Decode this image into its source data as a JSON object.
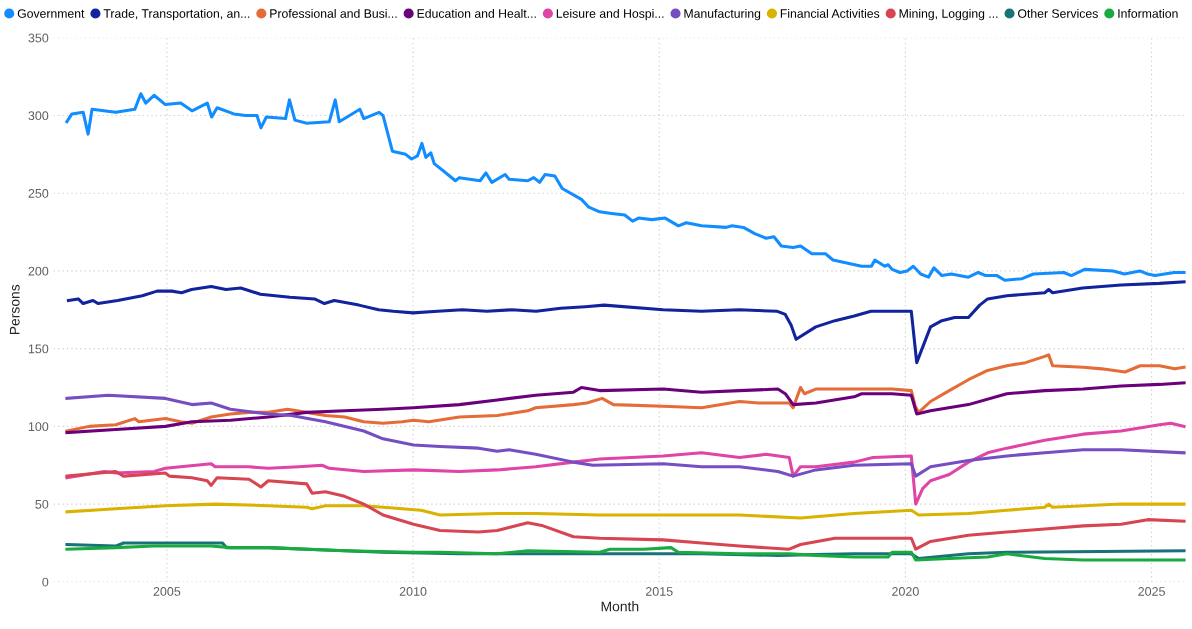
{
  "chart_data": {
    "type": "line",
    "xlabel": "Month",
    "ylabel": "Persons",
    "xlim": [
      2002.7,
      2025.7
    ],
    "xticks": [
      2005,
      2010,
      2015,
      2020,
      2025
    ],
    "ylim": [
      0,
      350
    ],
    "yticks": [
      0,
      50,
      100,
      150,
      200,
      250,
      300,
      350
    ],
    "grid": true,
    "legend": "top left",
    "marker": "none",
    "line_style": "solid",
    "series": [
      {
        "name": "Government",
        "color": "#118dff",
        "x": [
          2002.97,
          2003.07,
          2003.3,
          2003.4,
          2003.48,
          2003.96,
          2004.35,
          2004.47,
          2004.57,
          2004.74,
          2004.97,
          2005.28,
          2005.51,
          2005.82,
          2005.91,
          2006.02,
          2006.36,
          2006.6,
          2006.83,
          2006.91,
          2007.02,
          2007.41,
          2007.49,
          2007.6,
          2007.84,
          2008.3,
          2008.42,
          2008.5,
          2008.92,
          2009.0,
          2009.31,
          2009.39,
          2009.58,
          2009.85,
          2009.97,
          2010.09,
          2010.18,
          2010.26,
          2010.36,
          2010.43,
          2010.63,
          2010.86,
          2010.94,
          2011.36,
          2011.48,
          2011.6,
          2011.87,
          2011.95,
          2012.33,
          2012.45,
          2012.57,
          2012.68,
          2012.88,
          2013.03,
          2013.42,
          2013.57,
          2013.79,
          2014.03,
          2014.3,
          2014.46,
          2014.58,
          2014.85,
          2015.12,
          2015.39,
          2015.55,
          2015.86,
          2016.36,
          2016.48,
          2016.71,
          2016.94,
          2017.17,
          2017.33,
          2017.48,
          2017.72,
          2017.87,
          2018.1,
          2018.38,
          2018.53,
          2019.11,
          2019.31,
          2019.38,
          2019.58,
          2019.65,
          2019.73,
          2019.89,
          2020.04,
          2020.16,
          2020.31,
          2020.47,
          2020.58,
          2020.74,
          2020.93,
          2021.28,
          2021.48,
          2021.63,
          2021.86,
          2022.02,
          2022.37,
          2022.6,
          2023.22,
          2023.37,
          2023.64,
          2024.22,
          2024.45,
          2024.76,
          2024.92,
          2025.07,
          2025.46,
          2025.66
        ],
        "values": [
          296,
          301,
          302,
          288,
          304,
          302,
          304,
          314,
          308,
          313,
          307,
          308,
          303,
          308,
          299,
          305,
          301,
          300,
          300,
          292,
          299,
          298,
          310,
          297,
          295,
          296,
          310,
          296,
          304,
          298,
          302,
          300,
          277,
          275,
          272,
          274,
          282,
          273,
          276,
          269,
          264,
          258,
          260,
          258,
          263,
          257,
          262,
          259,
          258,
          260,
          257,
          262,
          261,
          253,
          246,
          241,
          238,
          237,
          236,
          232,
          234,
          233,
          234,
          229,
          231,
          229,
          228,
          229,
          228,
          224,
          221,
          222,
          216,
          215,
          216,
          211,
          211,
          207,
          203,
          203,
          207,
          203,
          204,
          201,
          199,
          200,
          203,
          198,
          196,
          202,
          197,
          198,
          196,
          199,
          197,
          197,
          194,
          195,
          198,
          199,
          197,
          201,
          200,
          198,
          200,
          198,
          197,
          199,
          199
        ]
      },
      {
        "name": "Trade, Transportation, an...",
        "color": "#12239e",
        "x": [
          2003.0,
          2003.2,
          2003.3,
          2003.5,
          2003.6,
          2004.0,
          2004.5,
          2004.8,
          2005.1,
          2005.3,
          2005.5,
          2005.9,
          2006.2,
          2006.5,
          2006.9,
          2007.2,
          2007.5,
          2008.0,
          2008.2,
          2008.4,
          2008.9,
          2009.3,
          2009.6,
          2010.0,
          2010.5,
          2011.0,
          2011.5,
          2012.0,
          2012.5,
          2013.0,
          2013.5,
          2013.88,
          2015.08,
          2015.86,
          2016.63,
          2017.4,
          2017.56,
          2017.68,
          2017.78,
          2018.18,
          2018.57,
          2018.96,
          2019.3,
          2019.65,
          2020.12,
          2020.23,
          2020.51,
          2020.74,
          2021.0,
          2021.28,
          2021.51,
          2021.67,
          2022.06,
          2022.83,
          2022.91,
          2022.99,
          2023.6,
          2024.38,
          2025.16,
          2025.66
        ],
        "values": [
          181,
          182,
          179,
          181,
          179,
          181,
          184,
          187,
          187,
          186,
          188,
          190,
          188,
          189,
          185,
          184,
          183,
          182,
          179,
          181,
          178,
          175,
          174,
          173,
          174,
          175,
          174,
          175,
          174,
          176,
          177,
          178,
          175,
          174,
          175,
          174,
          172,
          165,
          156,
          164,
          168,
          171,
          174,
          174,
          174,
          141,
          164,
          168,
          170,
          170,
          178,
          182,
          184,
          186,
          188,
          186,
          189,
          191,
          192,
          193
        ]
      },
      {
        "name": "Professional and Busi...",
        "color": "#e66c37",
        "x": [
          2002.97,
          2003.42,
          2003.96,
          2004.35,
          2004.43,
          2004.97,
          2005.28,
          2005.51,
          2005.9,
          2006.29,
          2006.67,
          2007.06,
          2007.45,
          2007.84,
          2008.22,
          2008.61,
          2009.0,
          2009.39,
          2009.78,
          2010.01,
          2010.32,
          2010.94,
          2011.71,
          2012.33,
          2012.49,
          2013.26,
          2013.53,
          2013.84,
          2014.07,
          2015.08,
          2015.86,
          2016.63,
          2017.02,
          2017.64,
          2017.72,
          2017.87,
          2017.95,
          2018.18,
          2018.96,
          2019.73,
          2020.12,
          2020.2,
          2020.27,
          2020.51,
          2020.89,
          2021.28,
          2021.67,
          2022.06,
          2022.44,
          2022.83,
          2022.91,
          2022.99,
          2023.61,
          2023.99,
          2024.46,
          2024.77,
          2025.16,
          2025.47,
          2025.66
        ],
        "values": [
          97,
          100,
          101,
          105,
          103,
          105,
          103,
          102,
          106,
          108,
          109,
          109,
          111,
          109,
          107,
          106,
          103,
          102,
          103,
          104,
          103,
          106,
          107,
          110,
          112,
          114,
          115,
          118,
          114,
          113,
          112,
          116,
          115,
          115,
          112,
          125,
          121,
          124,
          124,
          124,
          123,
          113,
          109,
          116,
          123,
          130,
          136,
          139,
          141,
          145,
          146,
          139,
          138,
          137,
          135,
          139,
          139,
          137,
          138
        ]
      },
      {
        "name": "Education and Healt...",
        "color": "#6b007b",
        "x": [
          2002.97,
          2003.96,
          2004.97,
          2005.51,
          2006.29,
          2007.06,
          2007.84,
          2008.61,
          2009.39,
          2010.01,
          2010.94,
          2011.71,
          2012.49,
          2013.26,
          2013.42,
          2013.79,
          2015.08,
          2015.86,
          2016.63,
          2017.41,
          2017.56,
          2017.72,
          2018.18,
          2018.96,
          2019.11,
          2019.73,
          2020.12,
          2020.23,
          2020.51,
          2021.28,
          2022.06,
          2022.83,
          2023.61,
          2024.38,
          2025.16,
          2025.66
        ],
        "values": [
          96,
          98,
          100,
          103,
          104,
          106,
          109,
          110,
          111,
          112,
          114,
          117,
          120,
          122,
          125,
          123,
          124,
          122,
          123,
          124,
          121,
          114,
          115,
          119,
          121,
          121,
          120,
          108,
          110,
          114,
          121,
          123,
          124,
          126,
          127,
          128
        ]
      },
      {
        "name": "Leisure and Hospi...",
        "color": "#e044a7",
        "x": [
          2002.97,
          2003.73,
          2003.96,
          2004.74,
          2004.97,
          2005.9,
          2005.98,
          2006.67,
          2007.06,
          2007.68,
          2008.15,
          2008.3,
          2009.0,
          2010.01,
          2010.94,
          2011.71,
          2012.49,
          2013.26,
          2013.79,
          2015.08,
          2015.86,
          2016.63,
          2017.17,
          2017.64,
          2017.72,
          2017.87,
          2018.18,
          2018.96,
          2019.34,
          2020.12,
          2020.21,
          2020.35,
          2020.51,
          2020.89,
          2021.28,
          2021.67,
          2022.06,
          2022.83,
          2023.61,
          2024.38,
          2025.16,
          2025.39,
          2025.66
        ],
        "values": [
          67,
          71,
          70,
          71,
          73,
          76,
          74,
          74,
          73,
          74,
          75,
          73,
          71,
          72,
          71,
          72,
          74,
          77,
          79,
          81,
          83,
          80,
          82,
          80,
          68,
          74,
          74,
          77,
          80,
          81,
          50,
          60,
          65,
          69,
          77,
          83,
          86,
          91,
          95,
          97,
          101,
          102,
          100
        ]
      },
      {
        "name": "Manufacturing",
        "color": "#744ec2",
        "x": [
          2002.97,
          2003.81,
          2004.97,
          2005.51,
          2005.9,
          2006.29,
          2007.06,
          2007.53,
          2008.22,
          2009.0,
          2009.39,
          2010.01,
          2010.55,
          2011.33,
          2011.71,
          2011.95,
          2012.49,
          2013.26,
          2013.65,
          2015.08,
          2015.86,
          2016.63,
          2017.41,
          2017.72,
          2018.18,
          2018.96,
          2020.12,
          2020.21,
          2020.51,
          2021.28,
          2022.06,
          2022.83,
          2023.61,
          2024.38,
          2025.66
        ],
        "values": [
          118,
          120,
          118,
          114,
          115,
          111,
          108,
          107,
          103,
          97,
          92,
          88,
          87,
          86,
          84,
          85,
          82,
          77,
          75,
          76,
          74,
          74,
          71,
          68,
          72,
          75,
          76,
          68,
          74,
          78,
          81,
          83,
          85,
          85,
          83
        ]
      },
      {
        "name": "Financial Activities",
        "color": "#d9b300",
        "x": [
          2002.97,
          2003.96,
          2004.97,
          2005.98,
          2007.06,
          2007.84,
          2007.95,
          2008.22,
          2009.0,
          2009.78,
          2010.16,
          2010.55,
          2011.71,
          2012.49,
          2013.79,
          2015.08,
          2016.63,
          2017.87,
          2018.96,
          2020.12,
          2020.27,
          2021.28,
          2022.06,
          2022.83,
          2022.91,
          2022.99,
          2024.38,
          2025.66
        ],
        "values": [
          45,
          47,
          49,
          50,
          49,
          48,
          47,
          49,
          49,
          47,
          46,
          43,
          44,
          44,
          43,
          43,
          43,
          41,
          44,
          46,
          43,
          44,
          46,
          48,
          50,
          48,
          50,
          50
        ]
      },
      {
        "name": "Mining, Logging ...",
        "color": "#d64550",
        "x": [
          2002.97,
          2003.96,
          2004.12,
          2004.97,
          2005.05,
          2005.51,
          2005.82,
          2005.9,
          2006.02,
          2006.67,
          2006.91,
          2007.06,
          2007.84,
          2007.95,
          2008.22,
          2008.61,
          2009.0,
          2009.39,
          2010.01,
          2010.55,
          2011.33,
          2011.71,
          2011.95,
          2012.33,
          2012.64,
          2013.26,
          2013.79,
          2015.08,
          2015.86,
          2016.63,
          2017.64,
          2017.87,
          2018.57,
          2020.12,
          2020.21,
          2020.51,
          2021.28,
          2022.06,
          2022.83,
          2023.61,
          2024.38,
          2024.92,
          2025.66
        ],
        "values": [
          68,
          71,
          68,
          70,
          68,
          67,
          65,
          62,
          67,
          66,
          61,
          65,
          63,
          57,
          58,
          55,
          50,
          43,
          37,
          33,
          32,
          33,
          35,
          38,
          36,
          29,
          28,
          27,
          25,
          23,
          21,
          24,
          28,
          28,
          21,
          26,
          30,
          32,
          34,
          36,
          37,
          40,
          39
        ]
      },
      {
        "name": "Other Services",
        "color": "#197278",
        "x": [
          2002.97,
          2003.96,
          2004.12,
          2004.97,
          2006.13,
          2006.21,
          2007.06,
          2007.84,
          2009.39,
          2010.94,
          2013.79,
          2015.86,
          2017.41,
          2018.96,
          2020.12,
          2020.27,
          2021.28,
          2022.06,
          2025.66
        ],
        "values": [
          24,
          23,
          25,
          25,
          25,
          22,
          22,
          21,
          19,
          18,
          18,
          18,
          17,
          18,
          18,
          15,
          18,
          19,
          20
        ]
      },
      {
        "name": "Information",
        "color": "#1aab40",
        "x": [
          2002.97,
          2003.96,
          2004.74,
          2005.9,
          2006.29,
          2007.06,
          2008.61,
          2010.01,
          2010.55,
          2011.71,
          2012.33,
          2013.79,
          2014.0,
          2014.69,
          2015.24,
          2015.39,
          2016.63,
          2017.64,
          2018.18,
          2018.96,
          2019.65,
          2019.73,
          2020.12,
          2020.21,
          2020.89,
          2021.67,
          2022.06,
          2022.83,
          2023.61,
          2025.66
        ],
        "values": [
          21,
          22,
          23,
          23,
          22,
          22,
          20,
          19,
          19,
          18,
          20,
          19,
          21,
          21,
          22,
          19,
          18,
          18,
          17,
          16,
          16,
          19,
          19,
          14,
          15,
          16,
          18,
          15,
          14,
          14
        ]
      }
    ]
  }
}
